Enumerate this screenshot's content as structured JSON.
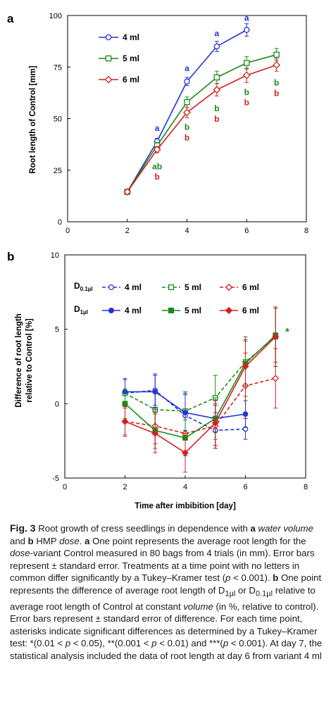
{
  "panel_a": {
    "label": "a",
    "ylabel": "Root length of Control [mm]",
    "legend": [
      "4 ml",
      "5 ml",
      "6 ml"
    ],
    "letters": [
      {
        "text": "a",
        "x": 3,
        "y": 44,
        "color": "#2433d6"
      },
      {
        "text": "ab",
        "x": 3,
        "y": 25.5,
        "color": "#1a8a1a"
      },
      {
        "text": "b",
        "x": 3,
        "y": 20.5,
        "color": "#d42020"
      },
      {
        "text": "a",
        "x": 4,
        "y": 73,
        "color": "#2433d6"
      },
      {
        "text": "b",
        "x": 4,
        "y": 44.5,
        "color": "#1a8a1a"
      },
      {
        "text": "b",
        "x": 4,
        "y": 39.5,
        "color": "#d42020"
      },
      {
        "text": "a",
        "x": 5,
        "y": 90,
        "color": "#2433d6"
      },
      {
        "text": "b",
        "x": 5,
        "y": 53.5,
        "color": "#1a8a1a"
      },
      {
        "text": "b",
        "x": 5,
        "y": 48.5,
        "color": "#d42020"
      },
      {
        "text": "a",
        "x": 6,
        "y": 97.5,
        "color": "#2433d6"
      },
      {
        "text": "b",
        "x": 6,
        "y": 61.5,
        "color": "#1a8a1a"
      },
      {
        "text": "b",
        "x": 6,
        "y": 56.5,
        "color": "#d42020"
      },
      {
        "text": "b",
        "x": 7,
        "y": 66,
        "color": "#1a8a1a"
      },
      {
        "text": "b",
        "x": 7,
        "y": 61,
        "color": "#d42020"
      }
    ]
  },
  "panel_b": {
    "label": "b",
    "xlabel": "Time after imbibition  [day]",
    "ylabel_line1": "Difference of root length",
    "ylabel_line2": "relative to Control [%]",
    "legend_group1_main": "D",
    "legend_group1_sub": "0.1µl",
    "legend_group2_main": "D",
    "legend_group2_sub": "1µl",
    "legend_labels": [
      "4 ml",
      "5 ml",
      "6 ml"
    ],
    "asterisk": "*"
  },
  "chart_data": [
    {
      "type": "line",
      "xlim": [
        0,
        8
      ],
      "ylim": [
        0,
        100
      ],
      "xticks": [
        0,
        2,
        4,
        6,
        8
      ],
      "yticks": [
        0,
        25,
        50,
        75,
        100
      ],
      "legend_position": "top-left",
      "series": [
        {
          "name": "4 ml",
          "color": "#2433d6",
          "marker": "open-circle",
          "x": [
            2,
            3,
            4,
            5,
            6
          ],
          "y": [
            14.5,
            39,
            68,
            85,
            93
          ],
          "err": [
            0.8,
            1.5,
            2,
            2.5,
            3
          ]
        },
        {
          "name": "5 ml",
          "color": "#1a8a1a",
          "marker": "open-square",
          "x": [
            2,
            3,
            4,
            5,
            6,
            7
          ],
          "y": [
            14.5,
            37,
            58,
            70,
            77,
            81
          ],
          "err": [
            0.8,
            1.5,
            2.5,
            3,
            3,
            3
          ]
        },
        {
          "name": "6 ml",
          "color": "#d42020",
          "marker": "open-diamond",
          "x": [
            2,
            3,
            4,
            5,
            6,
            7
          ],
          "y": [
            14.5,
            35,
            53,
            64,
            71,
            76
          ],
          "err": [
            0.8,
            1.5,
            2.5,
            3,
            3.5,
            3
          ]
        }
      ]
    },
    {
      "type": "line",
      "xlim": [
        0,
        8
      ],
      "ylim": [
        -5,
        10
      ],
      "xticks": [
        0,
        2,
        4,
        6,
        8
      ],
      "yticks": [
        -5,
        0,
        5,
        10
      ],
      "legend_position": "top",
      "series": [
        {
          "name": "4 ml",
          "group": "D0.1µl",
          "color": "#2433d6",
          "style": "dashed",
          "marker": "open-circle",
          "x": [
            2,
            3,
            4,
            5,
            6
          ],
          "y": [
            0.7,
            0.9,
            -0.8,
            -1.8,
            -1.7
          ],
          "err": [
            0.9,
            1.0,
            1.5,
            1.2,
            0.7
          ]
        },
        {
          "name": "5 ml",
          "group": "D0.1µl",
          "color": "#1a8a1a",
          "style": "dashed",
          "marker": "open-square",
          "x": [
            2,
            3,
            4,
            5,
            6,
            7
          ],
          "y": [
            0.7,
            -0.4,
            -0.5,
            0.4,
            2.8,
            4.5
          ],
          "err": [
            0.9,
            1.2,
            1.3,
            1.5,
            1.5,
            2.0
          ]
        },
        {
          "name": "6 ml",
          "group": "D0.1µl",
          "color": "#d42020",
          "style": "dashed",
          "marker": "open-diamond",
          "x": [
            2,
            3,
            4,
            5,
            6,
            7
          ],
          "y": [
            -1.2,
            -1.5,
            -2.0,
            -1.5,
            1.2,
            1.7
          ],
          "err": [
            0.9,
            1.2,
            1.5,
            1.5,
            2.2,
            2.0
          ]
        },
        {
          "name": "4 ml",
          "group": "D1µl",
          "color": "#2433d6",
          "style": "solid",
          "marker": "filled-circle",
          "x": [
            2,
            3,
            4,
            5,
            6
          ],
          "y": [
            0.8,
            0.8,
            -0.6,
            -1.0,
            -0.7
          ],
          "err": [
            0.9,
            1.2,
            1.2,
            0.9,
            0.9
          ]
        },
        {
          "name": "5 ml",
          "group": "D1µl",
          "color": "#1a8a1a",
          "style": "solid",
          "marker": "filled-square",
          "x": [
            2,
            3,
            4,
            5,
            6,
            7
          ],
          "y": [
            0,
            -1.8,
            -2.3,
            -1.0,
            2.7,
            4.6
          ],
          "err": [
            1.0,
            1.2,
            1.2,
            1.4,
            1.5,
            1.8
          ]
        },
        {
          "name": "6 ml",
          "group": "D1µl",
          "color": "#d42020",
          "style": "solid",
          "marker": "filled-diamond",
          "x": [
            2,
            3,
            4,
            5,
            6,
            7
          ],
          "y": [
            -1.2,
            -2.0,
            -3.3,
            -1.3,
            2.5,
            4.5
          ],
          "err": [
            1.0,
            1.3,
            1.3,
            1.5,
            2.0,
            2.0
          ]
        }
      ]
    }
  ],
  "caption": {
    "fig": "Fig. 3",
    "t1": " Root growth of cress seedlings in dependence with ",
    "a1": "a",
    "t2": " water volume",
    "t3": " and ",
    "b1": "b",
    "t4": " HMP ",
    "t5": "dose",
    "t6": ". ",
    "a2": "a",
    "t7": " One point represents the average root length for the ",
    "t8": "dose",
    "t9": "-variant Control measured in 80 bags from 4 trials (in mm). Error bars represent ± standard error. Treatments at a time point with no letters in common differ significantly by a Tukey–Kramer test (",
    "t10": "p",
    "t11": " < 0.001). ",
    "b2": "b",
    "t12": " One point represents the difference of average root length of D",
    "s1": "1µl",
    "t13": " or D",
    "s2": "0.1µl",
    "t14": " relative to average root length of Control at constant ",
    "t15": "volume",
    "t16": " (in %, relative to control). Error bars represent ± standard error of difference. For each time point, asterisks indicate significant differences as determined by a Tukey–Kramer test: *(0.01 < ",
    "t17": "p",
    "t18": " < 0.05), **(0.001 < ",
    "t19": "p",
    "t20": " < 0.01) and ***(",
    "t21": "p",
    "t22": " < 0.001). At day 7, the statistical analysis included the data of root length at day 6 from variant 4 ml"
  }
}
